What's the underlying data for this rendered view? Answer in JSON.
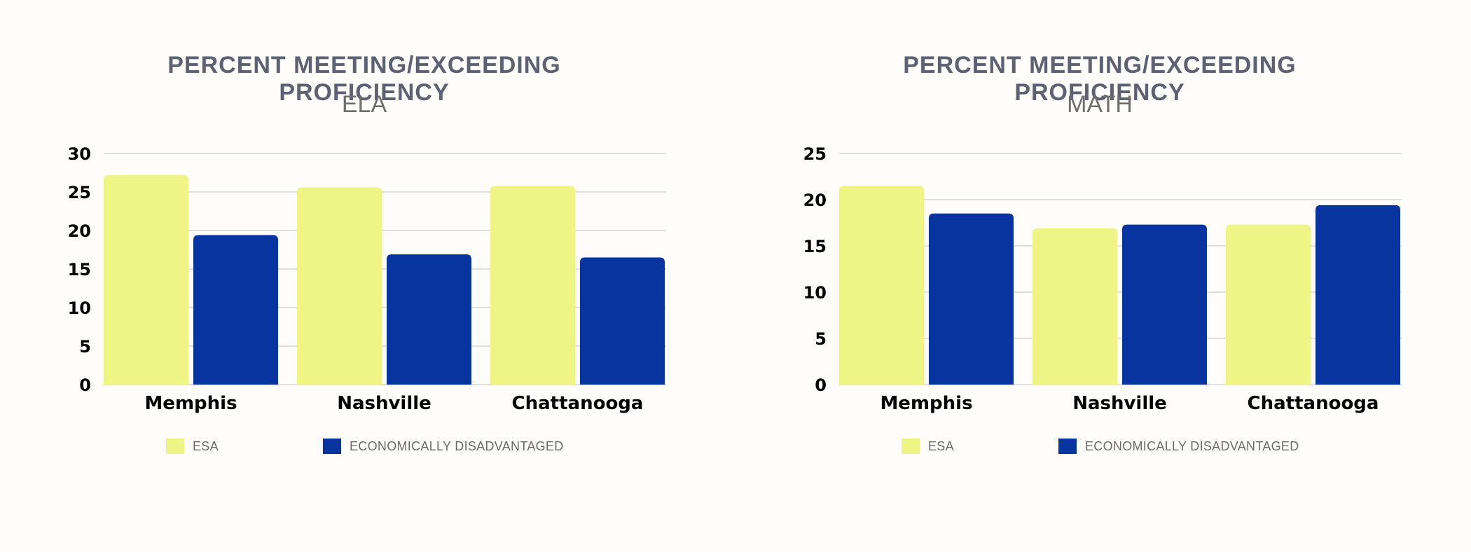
{
  "colors": {
    "esa": "#eef584",
    "econ": "#0834a0",
    "grid": "#d6d6d6"
  },
  "chart_data": [
    {
      "type": "bar",
      "title": "PERCENT MEETING/EXCEEDING PROFICIENCY",
      "subtitle": "ELA",
      "categories": [
        "Memphis",
        "Nashville",
        "Chattanooga"
      ],
      "series": [
        {
          "name": "ESA",
          "values": [
            27.2,
            25.6,
            25.8
          ]
        },
        {
          "name": "ECONOMICALLY DISADVANTAGED",
          "values": [
            19.4,
            16.9,
            16.5
          ]
        }
      ],
      "yticks": [
        0,
        5,
        10,
        15,
        20,
        25,
        30
      ],
      "ylim": [
        0,
        30
      ],
      "legend": [
        "ESA",
        "ECONOMICALLY DISADVANTAGED"
      ]
    },
    {
      "type": "bar",
      "title": "PERCENT MEETING/EXCEEDING PROFICIENCY",
      "subtitle": "MATH",
      "categories": [
        "Memphis",
        "Nashville",
        "Chattanooga"
      ],
      "series": [
        {
          "name": "ESA",
          "values": [
            21.5,
            16.9,
            17.3
          ]
        },
        {
          "name": "ECONOMICALLY DISADVANTAGED",
          "values": [
            18.5,
            17.3,
            19.4
          ]
        }
      ],
      "yticks": [
        0,
        5,
        10,
        15,
        20,
        25
      ],
      "ylim": [
        0,
        25
      ],
      "legend": [
        "ESA",
        "ECONOMICALLY DISADVANTAGED"
      ]
    }
  ]
}
